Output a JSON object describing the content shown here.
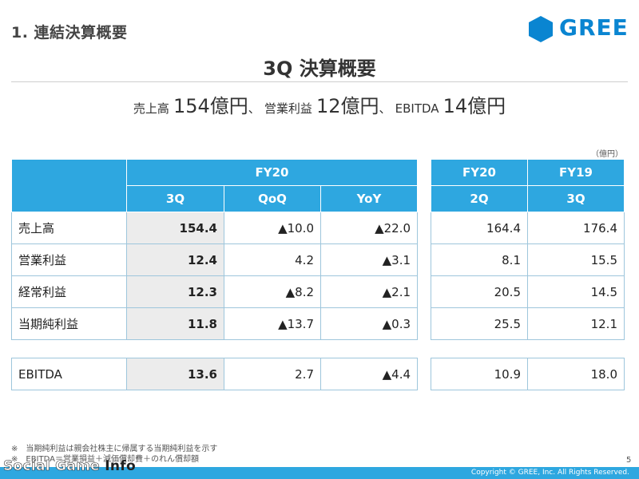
{
  "header": {
    "section_title": "1. 連結決算概要",
    "logo_text": "GREE",
    "brand_color": "#0a85d1"
  },
  "main_title": "3Q 決算概要",
  "summary": {
    "revenue_label": "売上高",
    "revenue_value": "154億円",
    "sep1": "、",
    "op_label": "営業利益",
    "op_value": "12億円",
    "sep2": "、",
    "ebitda_label": "EBITDA",
    "ebitda_value": "14億円"
  },
  "unit_note": "（億円）",
  "table": {
    "header_fy20": "FY20",
    "header_3q": "3Q",
    "header_qoq": "QoQ",
    "header_yoy": "YoY",
    "prev_fy20": "FY20",
    "prev_fy19": "FY19",
    "prev_2q": "2Q",
    "prev_3q": "3Q",
    "rows": [
      {
        "label": "売上高",
        "q3": "154.4",
        "qoq": "▲10.0",
        "yoy": "▲22.0",
        "fy20_2q": "164.4",
        "fy19_3q": "176.4"
      },
      {
        "label": "営業利益",
        "q3": "12.4",
        "qoq": "4.2",
        "yoy": "▲3.1",
        "fy20_2q": "8.1",
        "fy19_3q": "15.5"
      },
      {
        "label": "経常利益",
        "q3": "12.3",
        "qoq": "▲8.2",
        "yoy": "▲2.1",
        "fy20_2q": "20.5",
        "fy19_3q": "14.5"
      },
      {
        "label": "当期純利益",
        "q3": "11.8",
        "qoq": "▲13.7",
        "yoy": "▲0.3",
        "fy20_2q": "25.5",
        "fy19_3q": "12.1"
      }
    ],
    "ebitda": {
      "label": "EBITDA",
      "q3": "13.6",
      "qoq": "2.7",
      "yoy": "▲4.4",
      "fy20_2q": "10.9",
      "fy19_3q": "18.0"
    },
    "header_color": "#2ea7e0"
  },
  "footnotes": [
    "※　当期純利益は親会社株主に帰属する当期純利益を示す",
    "※　EBITDA＝営業損益＋減価償却費＋のれん償却額"
  ],
  "page_number": "5",
  "copyright": "Copyright © GREE, Inc. All Rights Reserved.",
  "watermark": {
    "part1": "Social Game ",
    "part2": "Info"
  }
}
